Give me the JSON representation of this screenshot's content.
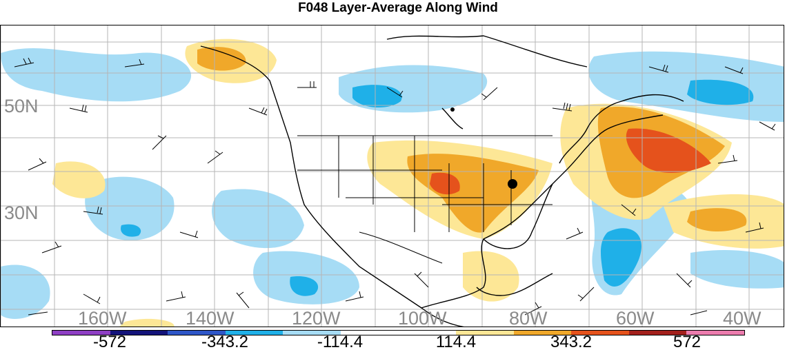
{
  "title": "F048 Layer-Average Along Wind",
  "map": {
    "lat_labels": [
      "50N",
      "30N"
    ],
    "lon_labels": [
      "160W",
      "140W",
      "120W",
      "100W",
      "80W",
      "60W",
      "40W"
    ],
    "marker": "black-dot"
  },
  "colorbar": {
    "colors": [
      "#8e3fc4",
      "#13137a",
      "#2e56c7",
      "#1fb0e8",
      "#a6dcf5",
      "#ffffff",
      "#ffffff",
      "#fde796",
      "#f0a82a",
      "#e5521c",
      "#a3201c",
      "#ec7cae"
    ],
    "tick_labels": [
      "-572",
      "-343.2",
      "-114.4",
      "114.4",
      "343.2",
      "572"
    ]
  },
  "colors": {
    "land_line": "#000000",
    "grid_line": "#9a9a9a",
    "neg_light": "#a6dcf5",
    "neg_mid": "#1fb0e8",
    "pos_light": "#fde796",
    "pos_mid": "#f0a82a",
    "pos_strong": "#e5521c"
  }
}
